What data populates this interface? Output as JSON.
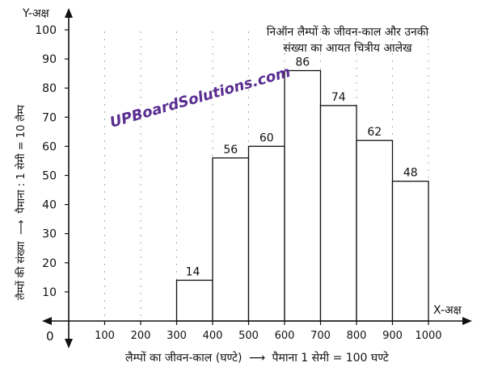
{
  "chart_data": {
    "type": "bar",
    "title": "निऑन लैम्पों के जीवन-काल और उनकी संख्या का आयत चित्रीय आलेख",
    "title_lines": [
      "निऑन लैम्पों के जीवन-काल और उनकी",
      "संख्या का आयत चित्रीय आलेख"
    ],
    "xlabel": "लैम्पों का जीवन-काल (घण्टे)",
    "xscale_text": "पैमाना 1 सेमी = 100 घण्टे",
    "ylabel": "लैम्पों की संख्या",
    "yscale_text": "पैमाना : 1 सेमी = 10 लैम्प",
    "x_axis_name": "X-अक्ष",
    "y_axis_name": "Y-अक्ष",
    "origin_label": "0",
    "xlim": [
      0,
      1000
    ],
    "ylim": [
      0,
      100
    ],
    "x_ticks": [
      100,
      200,
      300,
      400,
      500,
      600,
      700,
      800,
      900,
      1000
    ],
    "y_ticks": [
      10,
      20,
      30,
      40,
      50,
      60,
      70,
      80,
      90,
      100
    ],
    "bins": [
      {
        "from": 300,
        "to": 400,
        "value": 14
      },
      {
        "from": 400,
        "to": 500,
        "value": 56
      },
      {
        "from": 500,
        "to": 600,
        "value": 60
      },
      {
        "from": 600,
        "to": 700,
        "value": 86
      },
      {
        "from": 700,
        "to": 800,
        "value": 74
      },
      {
        "from": 800,
        "to": 900,
        "value": 62
      },
      {
        "from": 900,
        "to": 1000,
        "value": 48
      }
    ],
    "grid": false,
    "legend": "none"
  },
  "watermark": "UPBoardSolutions.com"
}
